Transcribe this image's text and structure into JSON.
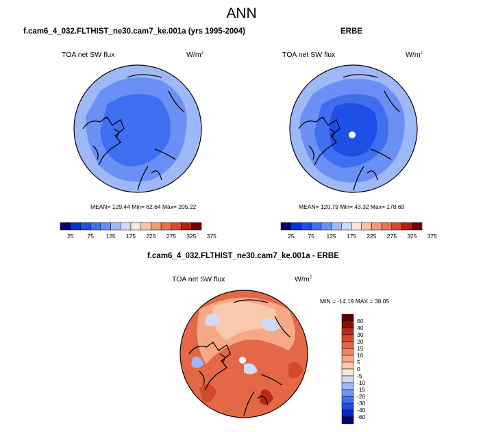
{
  "main_title": "ANN",
  "colors": {
    "blue_scale": [
      "#08006e",
      "#0a2fd2",
      "#1e50e6",
      "#3f6ef0",
      "#6a90f5",
      "#9fb8f8",
      "#cddaf9",
      "#fbe6d8",
      "#f8c3a8",
      "#f29a77",
      "#e8734f",
      "#d64b2f",
      "#b42017",
      "#780000"
    ],
    "diff_scale": [
      "#08006e",
      "#0b24c8",
      "#1f4ee0",
      "#4170ec",
      "#6f95f2",
      "#9fb8f6",
      "#cfdcf7",
      "#fde6d4",
      "#fac8ac",
      "#f6a887",
      "#ef8765",
      "#e46845",
      "#d24a2b",
      "#b62a17",
      "#8c0c06",
      "#5a0000"
    ],
    "land": "#000000",
    "missing": "#ffffff"
  },
  "panels": {
    "left": {
      "title": "f.cam6_4_032.FLTHIST_ne30.cam7_ke.001a (yrs 1995-2004)",
      "variable": "TOA net SW flux",
      "units": "W/m",
      "units_exp": "2",
      "stats": "MEAN= 129.44  Min=  62.64  Max= 205.22"
    },
    "right": {
      "title": "ERBE",
      "variable": "TOA net SW flux",
      "units": "W/m",
      "units_exp": "2",
      "stats": "MEAN= 120.79  Min=  43.32  Max= 178.69"
    },
    "diff": {
      "title": "f.cam6_4_032.FLTHIST_ne30.cam7_ke.001a - ERBE",
      "variable": "TOA net SW flux",
      "units": "W/m",
      "units_exp": "2",
      "stats": "MIN = -14.19 MAX = 38.05"
    }
  },
  "chart_data": [
    {
      "type": "heatmap",
      "projection": "north polar stereographic",
      "title": "f.cam6_4_032.FLTHIST_ne30.cam7_ke.001a (yrs 1995-2004)",
      "variable": "TOA net SW flux",
      "units": "W/m2",
      "mean": 129.44,
      "min": 62.64,
      "max": 205.22,
      "colorbar_ticks": [
        25,
        75,
        125,
        175,
        225,
        275,
        325,
        375
      ],
      "colorbar_levels": [
        0,
        25,
        50,
        75,
        100,
        125,
        150,
        175,
        200,
        225,
        250,
        275,
        300,
        325,
        350,
        375,
        400
      ],
      "zones": [
        {
          "level": "outer ring",
          "value": 150
        },
        {
          "level": "mid ring",
          "value": 130
        },
        {
          "level": "inner ring",
          "value": 110
        },
        {
          "level": "polar core",
          "value": 90
        }
      ]
    },
    {
      "type": "heatmap",
      "projection": "north polar stereographic",
      "title": "ERBE",
      "variable": "TOA net SW flux",
      "units": "W/m2",
      "mean": 120.79,
      "min": 43.32,
      "max": 178.69,
      "colorbar_ticks": [
        25,
        75,
        125,
        175,
        225,
        275,
        325,
        375
      ],
      "colorbar_levels": [
        0,
        25,
        50,
        75,
        100,
        125,
        150,
        175,
        200,
        225,
        250,
        275,
        300,
        325,
        350,
        375,
        400
      ],
      "zones": [
        {
          "level": "outer ring",
          "value": 150
        },
        {
          "level": "mid ring",
          "value": 120
        },
        {
          "level": "inner ring",
          "value": 100
        },
        {
          "level": "polar core",
          "value": 80
        }
      ]
    },
    {
      "type": "heatmap",
      "projection": "north polar stereographic",
      "title": "f.cam6_4_032.FLTHIST_ne30.cam7_ke.001a - ERBE",
      "variable": "TOA net SW flux",
      "units": "W/m2",
      "min": -14.19,
      "max": 38.05,
      "colorbar_ticks": [
        60,
        40,
        30,
        20,
        15,
        10,
        5,
        0,
        -5,
        -10,
        -15,
        -20,
        -30,
        -40,
        -60
      ],
      "zones": [
        {
          "level": "outer ring",
          "value": 15
        },
        {
          "level": "mid ring",
          "value": 5
        },
        {
          "level": "polar core",
          "value": 0
        }
      ]
    }
  ]
}
